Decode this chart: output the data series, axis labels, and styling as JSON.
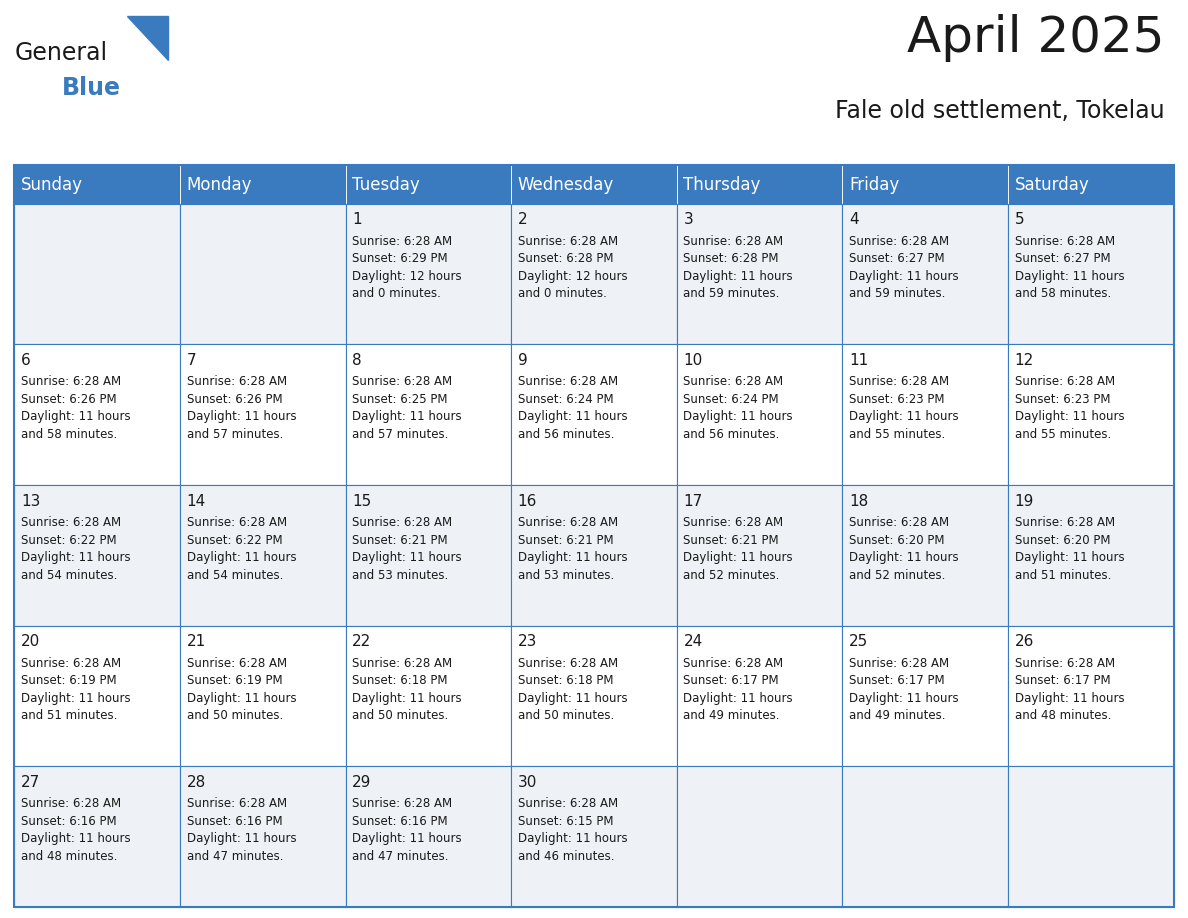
{
  "title": "April 2025",
  "subtitle": "Fale old settlement, Tokelau",
  "header_bg": "#3a7abf",
  "header_text": "#ffffff",
  "cell_bg_odd": "#eef2f7",
  "cell_bg_even": "#ffffff",
  "grid_color": "#3a7abf",
  "days_of_week": [
    "Sunday",
    "Monday",
    "Tuesday",
    "Wednesday",
    "Thursday",
    "Friday",
    "Saturday"
  ],
  "weeks": [
    [
      {
        "day": "",
        "info": ""
      },
      {
        "day": "",
        "info": ""
      },
      {
        "day": "1",
        "info": "Sunrise: 6:28 AM\nSunset: 6:29 PM\nDaylight: 12 hours\nand 0 minutes."
      },
      {
        "day": "2",
        "info": "Sunrise: 6:28 AM\nSunset: 6:28 PM\nDaylight: 12 hours\nand 0 minutes."
      },
      {
        "day": "3",
        "info": "Sunrise: 6:28 AM\nSunset: 6:28 PM\nDaylight: 11 hours\nand 59 minutes."
      },
      {
        "day": "4",
        "info": "Sunrise: 6:28 AM\nSunset: 6:27 PM\nDaylight: 11 hours\nand 59 minutes."
      },
      {
        "day": "5",
        "info": "Sunrise: 6:28 AM\nSunset: 6:27 PM\nDaylight: 11 hours\nand 58 minutes."
      }
    ],
    [
      {
        "day": "6",
        "info": "Sunrise: 6:28 AM\nSunset: 6:26 PM\nDaylight: 11 hours\nand 58 minutes."
      },
      {
        "day": "7",
        "info": "Sunrise: 6:28 AM\nSunset: 6:26 PM\nDaylight: 11 hours\nand 57 minutes."
      },
      {
        "day": "8",
        "info": "Sunrise: 6:28 AM\nSunset: 6:25 PM\nDaylight: 11 hours\nand 57 minutes."
      },
      {
        "day": "9",
        "info": "Sunrise: 6:28 AM\nSunset: 6:24 PM\nDaylight: 11 hours\nand 56 minutes."
      },
      {
        "day": "10",
        "info": "Sunrise: 6:28 AM\nSunset: 6:24 PM\nDaylight: 11 hours\nand 56 minutes."
      },
      {
        "day": "11",
        "info": "Sunrise: 6:28 AM\nSunset: 6:23 PM\nDaylight: 11 hours\nand 55 minutes."
      },
      {
        "day": "12",
        "info": "Sunrise: 6:28 AM\nSunset: 6:23 PM\nDaylight: 11 hours\nand 55 minutes."
      }
    ],
    [
      {
        "day": "13",
        "info": "Sunrise: 6:28 AM\nSunset: 6:22 PM\nDaylight: 11 hours\nand 54 minutes."
      },
      {
        "day": "14",
        "info": "Sunrise: 6:28 AM\nSunset: 6:22 PM\nDaylight: 11 hours\nand 54 minutes."
      },
      {
        "day": "15",
        "info": "Sunrise: 6:28 AM\nSunset: 6:21 PM\nDaylight: 11 hours\nand 53 minutes."
      },
      {
        "day": "16",
        "info": "Sunrise: 6:28 AM\nSunset: 6:21 PM\nDaylight: 11 hours\nand 53 minutes."
      },
      {
        "day": "17",
        "info": "Sunrise: 6:28 AM\nSunset: 6:21 PM\nDaylight: 11 hours\nand 52 minutes."
      },
      {
        "day": "18",
        "info": "Sunrise: 6:28 AM\nSunset: 6:20 PM\nDaylight: 11 hours\nand 52 minutes."
      },
      {
        "day": "19",
        "info": "Sunrise: 6:28 AM\nSunset: 6:20 PM\nDaylight: 11 hours\nand 51 minutes."
      }
    ],
    [
      {
        "day": "20",
        "info": "Sunrise: 6:28 AM\nSunset: 6:19 PM\nDaylight: 11 hours\nand 51 minutes."
      },
      {
        "day": "21",
        "info": "Sunrise: 6:28 AM\nSunset: 6:19 PM\nDaylight: 11 hours\nand 50 minutes."
      },
      {
        "day": "22",
        "info": "Sunrise: 6:28 AM\nSunset: 6:18 PM\nDaylight: 11 hours\nand 50 minutes."
      },
      {
        "day": "23",
        "info": "Sunrise: 6:28 AM\nSunset: 6:18 PM\nDaylight: 11 hours\nand 50 minutes."
      },
      {
        "day": "24",
        "info": "Sunrise: 6:28 AM\nSunset: 6:17 PM\nDaylight: 11 hours\nand 49 minutes."
      },
      {
        "day": "25",
        "info": "Sunrise: 6:28 AM\nSunset: 6:17 PM\nDaylight: 11 hours\nand 49 minutes."
      },
      {
        "day": "26",
        "info": "Sunrise: 6:28 AM\nSunset: 6:17 PM\nDaylight: 11 hours\nand 48 minutes."
      }
    ],
    [
      {
        "day": "27",
        "info": "Sunrise: 6:28 AM\nSunset: 6:16 PM\nDaylight: 11 hours\nand 48 minutes."
      },
      {
        "day": "28",
        "info": "Sunrise: 6:28 AM\nSunset: 6:16 PM\nDaylight: 11 hours\nand 47 minutes."
      },
      {
        "day": "29",
        "info": "Sunrise: 6:28 AM\nSunset: 6:16 PM\nDaylight: 11 hours\nand 47 minutes."
      },
      {
        "day": "30",
        "info": "Sunrise: 6:28 AM\nSunset: 6:15 PM\nDaylight: 11 hours\nand 46 minutes."
      },
      {
        "day": "",
        "info": ""
      },
      {
        "day": "",
        "info": ""
      },
      {
        "day": "",
        "info": ""
      }
    ]
  ],
  "logo_general_color": "#1a1a1a",
  "logo_blue_color": "#3a7abf",
  "logo_triangle_color": "#3a7abf",
  "title_fontsize": 36,
  "subtitle_fontsize": 17,
  "header_fontsize": 12,
  "day_num_fontsize": 11,
  "info_fontsize": 8.5
}
